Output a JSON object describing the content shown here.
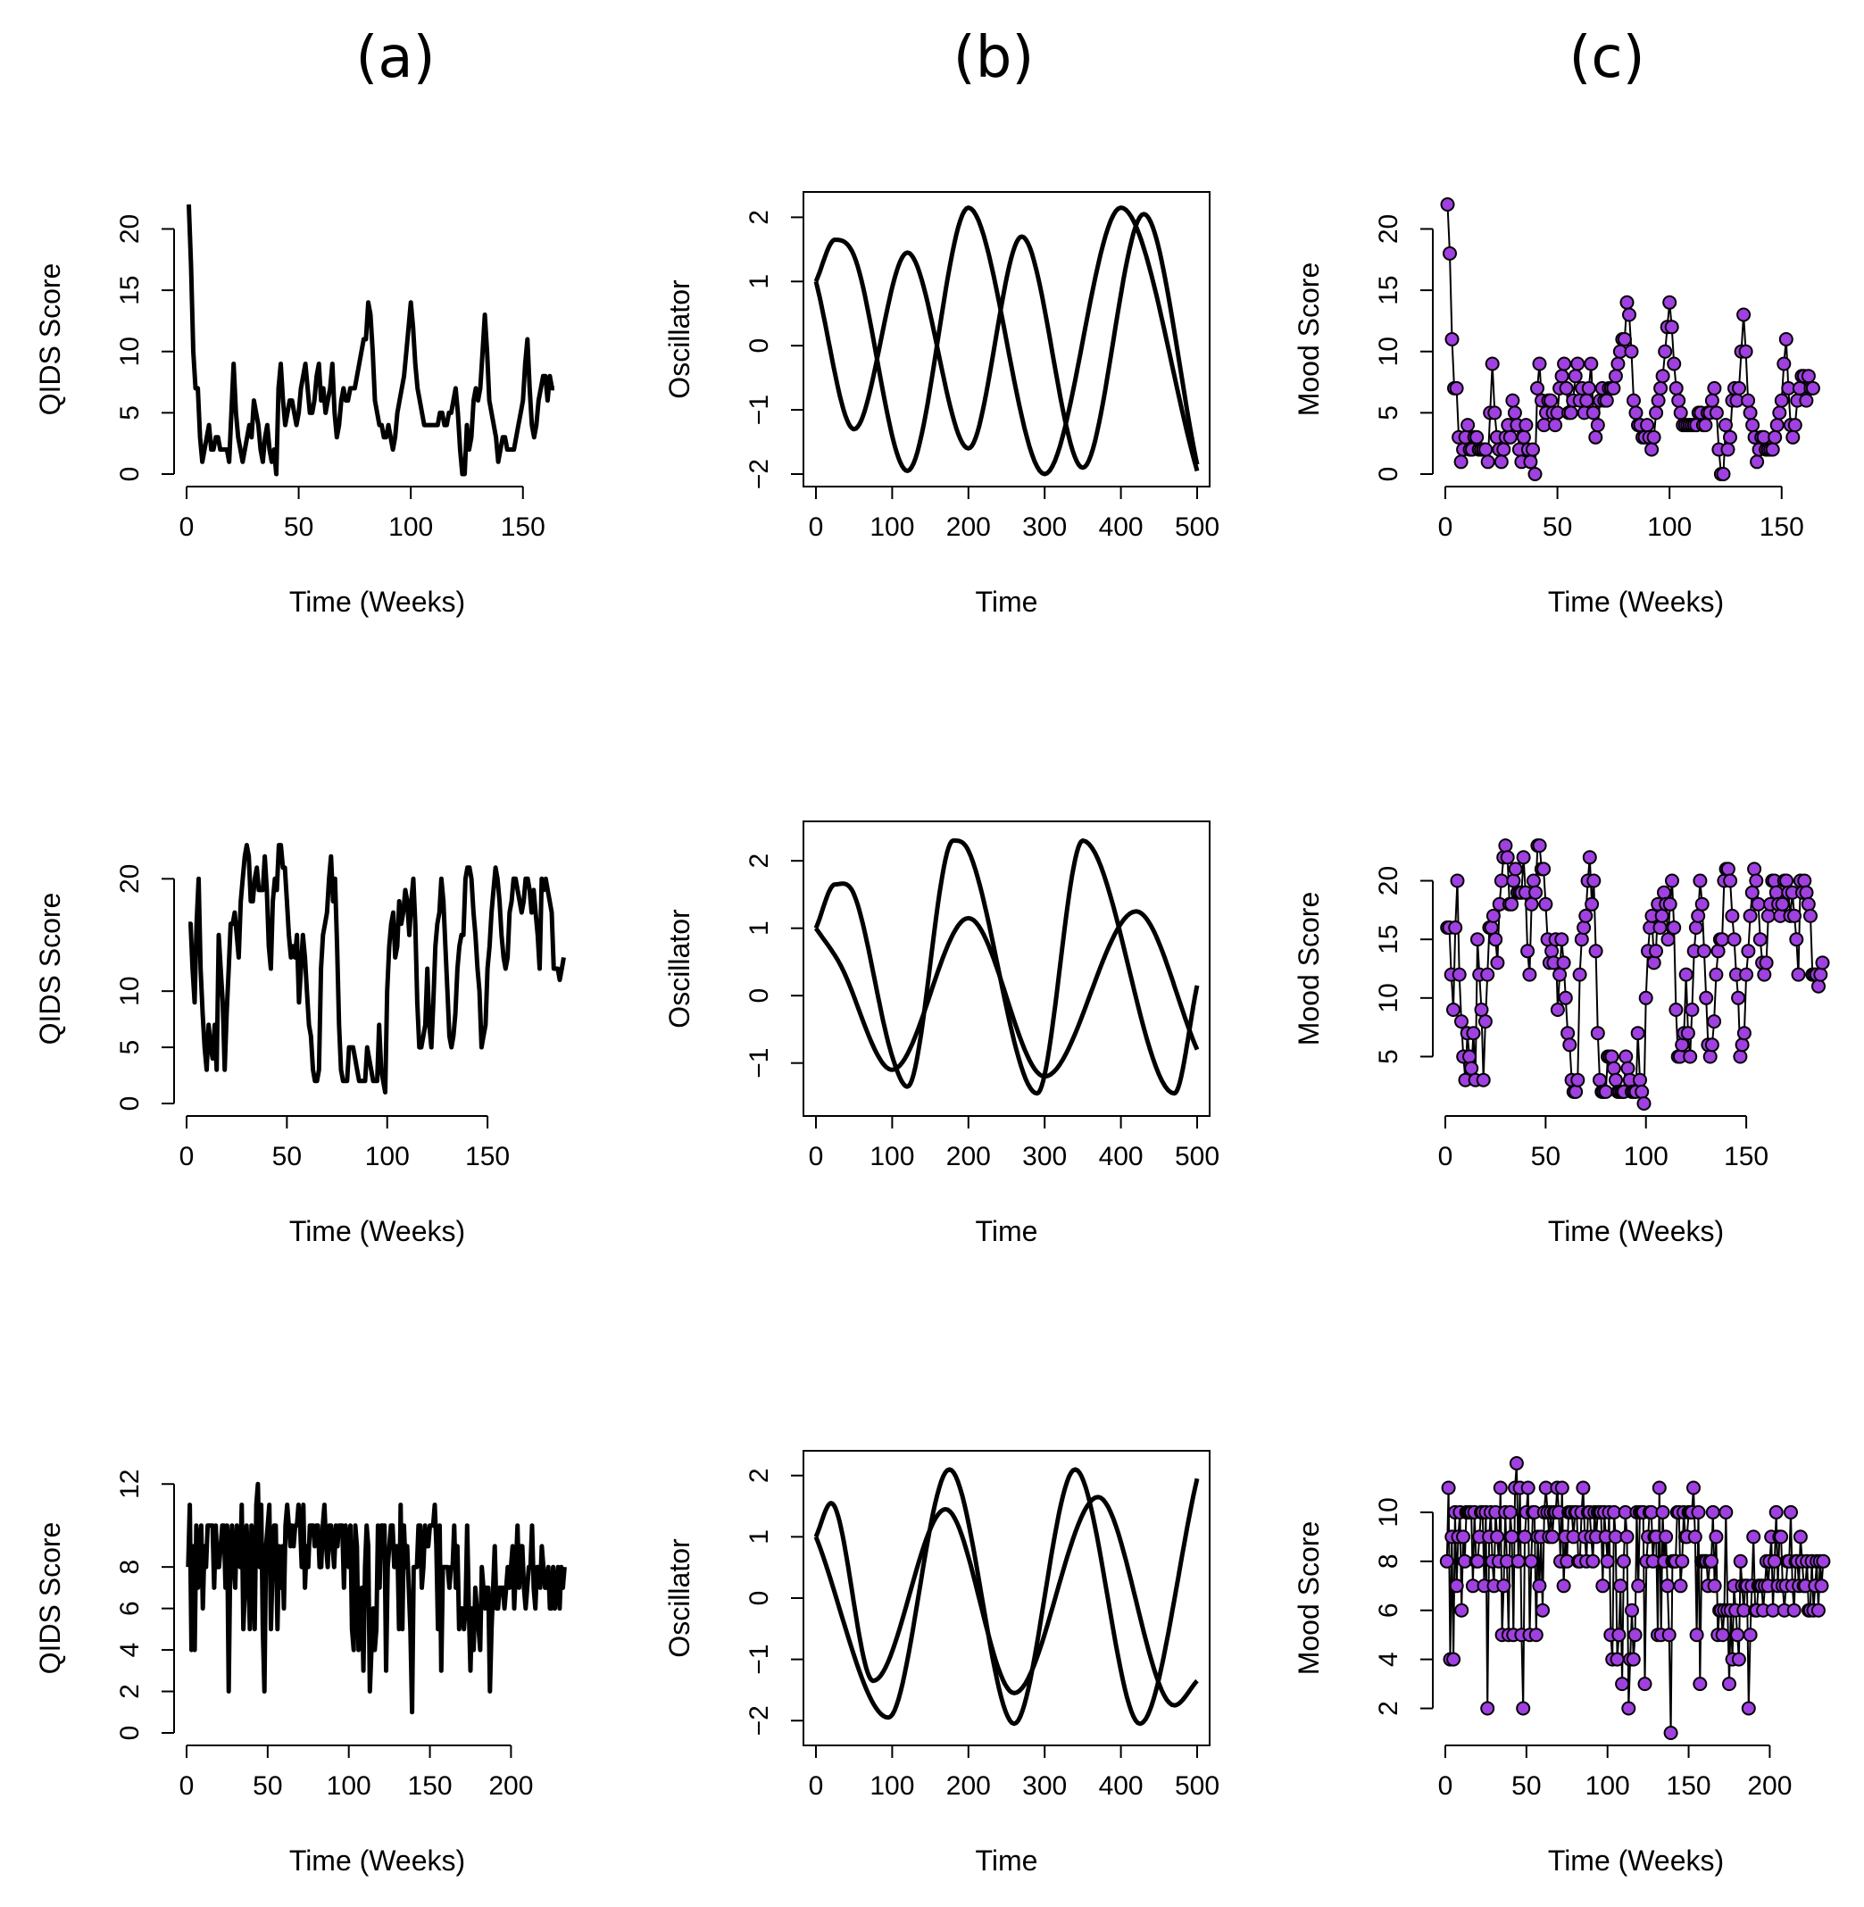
{
  "column_titles": [
    "(a)",
    "(b)",
    "(c)"
  ],
  "chart_data": [
    {
      "panel": "a1",
      "type": "line",
      "xlabel": "Time (Weeks)",
      "ylabel": "QIDS Score",
      "xlim": [
        0,
        170
      ],
      "ylim": [
        0,
        22
      ],
      "xticks": [
        0,
        50,
        100,
        150
      ],
      "yticks": [
        0,
        5,
        10,
        15,
        20
      ],
      "box": false,
      "y": [
        22,
        17,
        10,
        7,
        7,
        3,
        1,
        2,
        3,
        4,
        2,
        2,
        3,
        3,
        2,
        2,
        2,
        2,
        1,
        5,
        9,
        5,
        3,
        2,
        1,
        2,
        3,
        4,
        3,
        6,
        5,
        4,
        2,
        1,
        3,
        4,
        2,
        1,
        2,
        0,
        7,
        9,
        6,
        4,
        5,
        6,
        6,
        5,
        4,
        5,
        7,
        8,
        9,
        7,
        5,
        5,
        6,
        8,
        9,
        6,
        7,
        5,
        6,
        7,
        9,
        5,
        3,
        4,
        6,
        7,
        6,
        6,
        7,
        7,
        7,
        8,
        9,
        10,
        11,
        11,
        14,
        13,
        10,
        6,
        5,
        4,
        4,
        3,
        3,
        4,
        3,
        2,
        3,
        5,
        6,
        7,
        8,
        10,
        12,
        14,
        12,
        9,
        7,
        6,
        5,
        4,
        4,
        4,
        4,
        4,
        4,
        4,
        5,
        5,
        4,
        4,
        5,
        5,
        6,
        7,
        5,
        2,
        0,
        0,
        4,
        2,
        3,
        6,
        7,
        6,
        7,
        10,
        13,
        10,
        6,
        5,
        4,
        3,
        1,
        2,
        3,
        3,
        2,
        2,
        2,
        2,
        3,
        4,
        5,
        6,
        9,
        11,
        7,
        4,
        3,
        4,
        6,
        7,
        8,
        8,
        6,
        8,
        7,
        7
      ]
    },
    {
      "panel": "b1",
      "type": "line",
      "xlabel": "Time",
      "ylabel": "Oscillator",
      "xlim": [
        0,
        500
      ],
      "ylim": [
        -2,
        2.2
      ],
      "xticks": [
        0,
        100,
        200,
        300,
        400,
        500
      ],
      "yticks": [
        -2,
        -1,
        0,
        1,
        2
      ],
      "box": true,
      "series": [
        {
          "x": [
            0,
            25,
            50,
            120,
            200,
            300,
            400,
            500
          ],
          "y": [
            1,
            1.65,
            1.4,
            -1.95,
            2.15,
            -2.0,
            2.15,
            -1.95
          ]
        },
        {
          "x": [
            0,
            50,
            120,
            200,
            270,
            350,
            430,
            500
          ],
          "y": [
            1,
            -1.3,
            1.45,
            -1.6,
            1.7,
            -1.9,
            2.05,
            -1.85
          ]
        }
      ]
    },
    {
      "panel": "c1",
      "type": "scatter",
      "xlabel": "Time (Weeks)",
      "ylabel": "Mood Score",
      "xlim": [
        0,
        170
      ],
      "ylim": [
        0,
        22
      ],
      "xticks": [
        0,
        50,
        100,
        150
      ],
      "yticks": [
        0,
        5,
        10,
        15,
        20
      ],
      "box": false,
      "point_color": "#a040e0",
      "y": [
        22,
        18,
        11,
        7,
        7,
        3,
        1,
        2,
        3,
        4,
        2,
        2,
        3,
        3,
        2,
        2,
        2,
        2,
        1,
        5,
        9,
        5,
        3,
        2,
        1,
        2,
        3,
        4,
        3,
        6,
        5,
        4,
        2,
        1,
        3,
        4,
        2,
        1,
        2,
        0,
        7,
        9,
        6,
        4,
        5,
        6,
        6,
        5,
        4,
        5,
        7,
        8,
        9,
        7,
        5,
        5,
        6,
        8,
        9,
        6,
        7,
        5,
        6,
        7,
        9,
        5,
        3,
        4,
        6,
        7,
        6,
        6,
        7,
        7,
        7,
        8,
        9,
        10,
        11,
        11,
        14,
        13,
        10,
        6,
        5,
        4,
        4,
        3,
        3,
        4,
        3,
        2,
        3,
        5,
        6,
        7,
        8,
        10,
        12,
        14,
        12,
        9,
        7,
        6,
        5,
        4,
        4,
        4,
        4,
        4,
        4,
        4,
        5,
        5,
        4,
        4,
        5,
        5,
        6,
        7,
        5,
        2,
        0,
        0,
        4,
        2,
        3,
        6,
        7,
        6,
        7,
        10,
        13,
        10,
        6,
        5,
        4,
        3,
        1,
        2,
        3,
        3,
        2,
        2,
        2,
        2,
        3,
        4,
        5,
        6,
        9,
        11,
        7,
        4,
        3,
        4,
        6,
        7,
        8,
        8,
        6,
        8,
        7,
        7
      ]
    },
    {
      "panel": "a2",
      "type": "line",
      "xlabel": "Time (Weeks)",
      "ylabel": "QIDS Score",
      "xlim": [
        0,
        190
      ],
      "ylim": [
        0,
        24
      ],
      "xticks": [
        0,
        50,
        100,
        150
      ],
      "yticks": [
        0,
        5,
        10,
        20
      ],
      "box": false,
      "y": [
        16,
        16,
        12,
        9,
        16,
        20,
        12,
        8,
        5,
        3,
        7,
        5,
        4,
        7,
        3,
        15,
        12,
        9,
        3,
        8,
        12,
        16,
        16,
        17,
        15,
        13,
        18,
        20,
        22,
        23,
        22,
        18,
        18,
        20,
        21,
        19,
        19,
        19,
        22,
        19,
        14,
        12,
        18,
        20,
        19,
        23,
        23,
        21,
        21,
        18,
        15,
        13,
        14,
        13,
        15,
        9,
        12,
        15,
        13,
        10,
        7,
        6,
        3,
        2,
        2,
        3,
        12,
        15,
        16,
        17,
        20,
        22,
        18,
        20,
        14,
        7,
        3,
        2,
        2,
        2,
        5,
        5,
        5,
        4,
        3,
        2,
        2,
        2,
        2,
        5,
        4,
        3,
        2,
        2,
        2,
        7,
        3,
        2,
        1,
        10,
        14,
        16,
        17,
        13,
        14,
        18,
        16,
        17,
        19,
        18,
        15,
        18,
        20,
        16,
        9,
        5,
        5,
        6,
        7,
        12,
        7,
        5,
        9,
        14,
        16,
        17,
        20,
        18,
        14,
        10,
        6,
        5,
        6,
        8,
        12,
        14,
        15,
        15,
        20,
        21,
        21,
        20,
        17,
        15,
        12,
        10,
        5,
        6,
        7,
        12,
        14,
        17,
        19,
        21,
        20,
        18,
        15,
        13,
        12,
        13,
        17,
        18,
        20,
        20,
        19,
        18,
        17,
        18,
        20,
        20,
        19,
        17,
        19,
        17,
        15,
        12,
        20,
        19,
        20,
        19,
        18,
        17,
        12,
        12,
        12,
        11,
        12,
        13
      ]
    },
    {
      "panel": "b2",
      "type": "line",
      "xlabel": "Time",
      "ylabel": "Oscillator",
      "xlim": [
        0,
        500
      ],
      "ylim": [
        -1.6,
        2.4
      ],
      "xticks": [
        0,
        100,
        200,
        300,
        400,
        500
      ],
      "yticks": [
        -1,
        0,
        1,
        2
      ],
      "box": true,
      "series": [
        {
          "x": [
            0,
            25,
            50,
            100,
            120,
            180,
            200,
            290,
            350,
            470,
            500
          ],
          "y": [
            1,
            1.65,
            1.5,
            -0.9,
            -1.35,
            2.3,
            2.15,
            -1.45,
            2.3,
            -1.45,
            0.15
          ]
        },
        {
          "x": [
            0,
            30,
            100,
            200,
            300,
            420,
            500
          ],
          "y": [
            1,
            0.5,
            -1.1,
            1.15,
            -1.2,
            1.25,
            -0.8
          ]
        }
      ]
    },
    {
      "panel": "c2",
      "type": "scatter",
      "xlabel": "Time (Weeks)",
      "ylabel": "Mood Score",
      "xlim": [
        0,
        190
      ],
      "ylim": [
        1,
        24
      ],
      "xticks": [
        0,
        50,
        100,
        150
      ],
      "yticks": [
        5,
        10,
        15,
        20
      ],
      "box": false,
      "point_color": "#a040e0",
      "y": [
        16,
        16,
        12,
        9,
        16,
        20,
        12,
        8,
        5,
        3,
        7,
        5,
        4,
        7,
        3,
        15,
        12,
        9,
        3,
        8,
        12,
        16,
        16,
        17,
        15,
        13,
        18,
        20,
        22,
        23,
        22,
        18,
        18,
        20,
        21,
        19,
        19,
        19,
        22,
        19,
        14,
        12,
        18,
        20,
        19,
        23,
        23,
        21,
        21,
        18,
        15,
        13,
        14,
        13,
        15,
        9,
        12,
        15,
        13,
        10,
        7,
        6,
        3,
        2,
        2,
        3,
        12,
        15,
        16,
        17,
        20,
        22,
        18,
        20,
        14,
        7,
        3,
        2,
        2,
        2,
        5,
        5,
        5,
        4,
        3,
        2,
        2,
        2,
        2,
        5,
        4,
        3,
        2,
        2,
        2,
        7,
        3,
        2,
        1,
        10,
        14,
        16,
        17,
        13,
        14,
        18,
        16,
        17,
        19,
        18,
        15,
        18,
        20,
        16,
        9,
        5,
        5,
        6,
        7,
        12,
        7,
        5,
        9,
        14,
        16,
        17,
        20,
        18,
        14,
        10,
        6,
        5,
        6,
        8,
        12,
        14,
        15,
        15,
        20,
        21,
        21,
        20,
        17,
        15,
        12,
        10,
        5,
        6,
        7,
        12,
        14,
        17,
        19,
        21,
        20,
        18,
        15,
        13,
        12,
        13,
        17,
        18,
        20,
        20,
        19,
        18,
        17,
        18,
        20,
        20,
        19,
        17,
        19,
        17,
        15,
        12,
        20,
        19,
        20,
        19,
        18,
        17,
        12,
        12,
        12,
        11,
        12,
        13
      ]
    },
    {
      "panel": "a3",
      "type": "line",
      "xlabel": "Time (Weeks)",
      "ylabel": "QIDS Score",
      "xlim": [
        0,
        235
      ],
      "ylim": [
        0,
        13
      ],
      "xticks": [
        0,
        50,
        100,
        150,
        200
      ],
      "yticks": [
        0,
        2,
        4,
        6,
        8,
        12
      ],
      "box": false,
      "y": [
        8,
        11,
        4,
        9,
        4,
        10,
        7,
        9,
        10,
        6,
        9,
        8,
        10,
        10,
        10,
        10,
        7,
        10,
        8,
        8,
        9,
        10,
        10,
        7,
        10,
        2,
        9,
        10,
        8,
        7,
        10,
        9,
        8,
        11,
        5,
        7,
        10,
        8,
        5,
        10,
        9,
        5,
        11,
        12,
        8,
        11,
        5,
        2,
        9,
        10,
        11,
        5,
        8,
        10,
        10,
        5,
        9,
        7,
        9,
        6,
        10,
        11,
        10,
        9,
        10,
        9,
        10,
        10,
        11,
        10,
        8,
        11,
        7,
        9,
        8,
        10,
        10,
        10,
        9,
        10,
        10,
        8,
        8,
        10,
        11,
        9,
        8,
        10,
        10,
        9,
        8,
        10,
        9,
        10,
        10,
        10,
        7,
        10,
        9,
        8,
        10,
        5,
        4,
        10,
        9,
        4,
        5,
        7,
        3,
        8,
        10,
        9,
        2,
        4,
        6,
        4,
        5,
        10,
        7,
        10,
        10,
        10,
        3,
        8,
        9,
        10,
        10,
        8,
        9,
        9,
        5,
        11,
        5,
        10,
        8,
        9,
        7,
        5,
        1,
        8,
        8,
        8,
        10,
        10,
        7,
        8,
        10,
        9,
        9,
        10,
        10,
        10,
        11,
        9,
        5,
        10,
        3,
        8,
        8,
        8,
        8,
        7,
        8,
        8,
        10,
        7,
        9,
        5,
        6,
        6,
        5,
        6,
        10,
        6,
        3,
        6,
        4,
        7,
        6,
        5,
        4,
        8,
        7,
        6,
        7,
        7,
        2,
        5,
        7,
        9,
        6,
        6,
        7,
        7,
        7,
        6,
        7,
        8,
        7,
        8,
        9,
        6,
        8,
        10,
        7,
        9,
        9,
        7,
        6,
        7,
        8,
        8,
        10,
        7,
        6,
        8,
        8,
        7,
        9,
        8,
        7,
        7,
        8,
        6,
        6,
        8,
        6,
        7,
        8,
        6,
        8,
        7,
        8
      ]
    },
    {
      "panel": "b3",
      "type": "line",
      "xlabel": "Time",
      "ylabel": "Oscillator",
      "xlim": [
        0,
        500
      ],
      "ylim": [
        -2.2,
        2.2
      ],
      "xticks": [
        0,
        100,
        200,
        300,
        400,
        500
      ],
      "yticks": [
        -2,
        -1,
        0,
        1,
        2
      ],
      "box": true,
      "series": [
        {
          "x": [
            0,
            20,
            75,
            170,
            260,
            370,
            470,
            500
          ],
          "y": [
            1,
            1.55,
            -1.35,
            1.45,
            -1.55,
            1.65,
            -1.75,
            -1.35
          ]
        },
        {
          "x": [
            0,
            95,
            175,
            260,
            340,
            425,
            500
          ],
          "y": [
            1,
            -1.95,
            2.1,
            -2.05,
            2.1,
            -2.05,
            1.95
          ]
        }
      ]
    },
    {
      "panel": "c3",
      "type": "scatter",
      "xlabel": "Time (Weeks)",
      "ylabel": "Mood Score",
      "xlim": [
        0,
        235
      ],
      "ylim": [
        1,
        12
      ],
      "xticks": [
        0,
        50,
        100,
        150,
        200
      ],
      "yticks": [
        2,
        4,
        6,
        8,
        10
      ],
      "box": false,
      "point_color": "#a040e0",
      "y": [
        8,
        11,
        4,
        9,
        4,
        10,
        7,
        9,
        10,
        6,
        9,
        8,
        10,
        10,
        10,
        10,
        7,
        10,
        8,
        8,
        9,
        10,
        10,
        7,
        10,
        2,
        9,
        10,
        8,
        7,
        10,
        9,
        8,
        11,
        5,
        7,
        10,
        8,
        5,
        10,
        9,
        5,
        11,
        12,
        8,
        11,
        5,
        2,
        9,
        10,
        11,
        5,
        8,
        10,
        10,
        5,
        9,
        7,
        9,
        6,
        10,
        11,
        10,
        9,
        10,
        9,
        10,
        10,
        11,
        10,
        8,
        11,
        7,
        9,
        8,
        10,
        10,
        10,
        9,
        10,
        10,
        8,
        8,
        10,
        11,
        9,
        8,
        10,
        10,
        9,
        8,
        10,
        9,
        10,
        10,
        10,
        7,
        10,
        9,
        8,
        10,
        5,
        4,
        10,
        9,
        4,
        5,
        7,
        3,
        8,
        10,
        9,
        2,
        4,
        6,
        4,
        5,
        10,
        7,
        10,
        10,
        10,
        3,
        8,
        9,
        10,
        10,
        8,
        9,
        9,
        5,
        11,
        5,
        10,
        8,
        9,
        7,
        5,
        1,
        8,
        8,
        8,
        10,
        10,
        7,
        8,
        10,
        9,
        9,
        10,
        10,
        10,
        11,
        9,
        5,
        10,
        3,
        8,
        8,
        8,
        8,
        7,
        8,
        8,
        10,
        7,
        9,
        5,
        6,
        6,
        5,
        6,
        10,
        6,
        3,
        6,
        4,
        7,
        6,
        5,
        4,
        8,
        7,
        6,
        7,
        7,
        2,
        5,
        7,
        9,
        6,
        6,
        7,
        7,
        7,
        6,
        7,
        8,
        7,
        8,
        9,
        6,
        8,
        10,
        7,
        9,
        9,
        7,
        6,
        7,
        8,
        8,
        10,
        7,
        6,
        8,
        8,
        7,
        9,
        8,
        7,
        7,
        8,
        6,
        6,
        8,
        6,
        7,
        8,
        6,
        8,
        7,
        8
      ]
    }
  ]
}
